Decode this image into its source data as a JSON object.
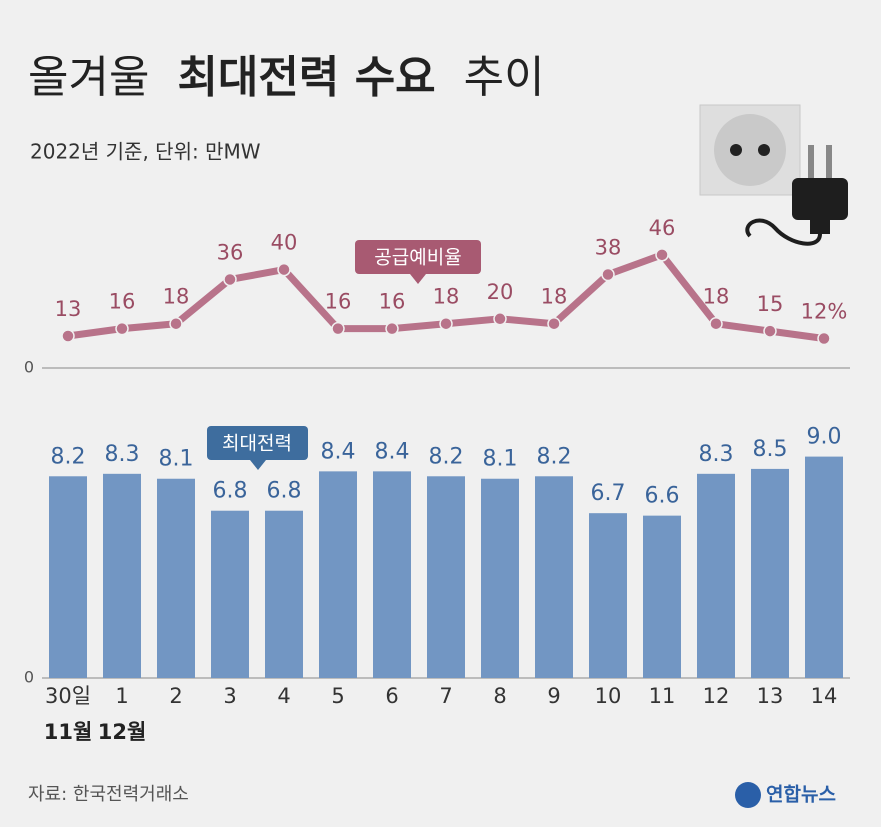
{
  "header": {
    "title_parts": [
      "올겨울",
      "최대전력 수요",
      "추이"
    ],
    "subtitle": "2022년 기준, 단위: 만MW"
  },
  "chart_data": [
    {
      "type": "line",
      "series": [
        {
          "name": "공급예비율",
          "color": "#b8738a",
          "values": [
            13,
            16,
            18,
            36,
            40,
            16,
            16,
            18,
            20,
            18,
            38,
            46,
            18,
            15,
            12
          ],
          "value_labels": [
            "13",
            "16",
            "18",
            "36",
            "40",
            "16",
            "16",
            "18",
            "20",
            "18",
            "38",
            "46",
            "18",
            "15",
            "12%"
          ]
        }
      ],
      "ylim": [
        0,
        50
      ],
      "yticks": [
        0
      ]
    },
    {
      "type": "bar",
      "categories": [
        "30일",
        "1",
        "2",
        "3",
        "4",
        "5",
        "6",
        "7",
        "8",
        "9",
        "10",
        "11",
        "12",
        "13",
        "14"
      ],
      "category_groups": [
        "11월",
        "12월",
        null,
        null,
        null,
        null,
        null,
        null,
        null,
        null,
        null,
        null,
        null,
        null,
        null
      ],
      "series": [
        {
          "name": "최대전력",
          "color": "#7296c3",
          "values": [
            8.2,
            8.3,
            8.1,
            6.8,
            6.8,
            8.4,
            8.4,
            8.2,
            8.1,
            8.2,
            6.7,
            6.6,
            8.3,
            8.5,
            9.0
          ],
          "value_labels": [
            "8.2",
            "8.3",
            "8.1",
            "6.8",
            "6.8",
            "8.4",
            "8.4",
            "8.2",
            "8.1",
            "8.2",
            "6.7",
            "6.6",
            "8.3",
            "8.5",
            "9.0"
          ]
        }
      ],
      "ylim": [
        0,
        10
      ],
      "yticks": [
        0
      ]
    }
  ],
  "footer": {
    "source": "자료: 한국전력거래소",
    "logo": "연합뉴스"
  }
}
